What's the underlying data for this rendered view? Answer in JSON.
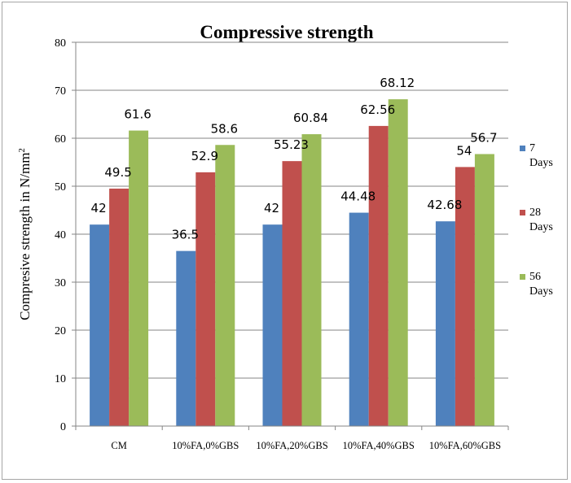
{
  "chart_data": {
    "type": "bar",
    "title": "Compressive strength",
    "ylabel": "Compresive strength in N/mm",
    "ylabel_superscript": "2",
    "xlabel": "",
    "ylim": [
      0,
      80
    ],
    "ytick_step": 10,
    "yticks": [
      "0",
      "10",
      "20",
      "30",
      "40",
      "50",
      "60",
      "70",
      "80"
    ],
    "grid": true,
    "legend_position": "right",
    "categories": [
      "CM",
      "10%FA,0%GBS",
      "10%FA,20%GBS",
      "10%FA,40%GBS",
      "10%FA,60%GBS"
    ],
    "series": [
      {
        "name": "7 Days",
        "name_lines": [
          "7",
          "Days"
        ],
        "color": "#4f81bd",
        "values": [
          42,
          36.5,
          42,
          44.48,
          42.68
        ],
        "labels": [
          "42",
          "36.5",
          "42",
          "44.48",
          "42.68"
        ]
      },
      {
        "name": "28 Days",
        "name_lines": [
          "28",
          "Days"
        ],
        "color": "#c0504d",
        "values": [
          49.5,
          52.9,
          55.23,
          62.56,
          54
        ],
        "labels": [
          "49.5",
          "52.9",
          "55.23",
          "62.56",
          "54"
        ]
      },
      {
        "name": "56 Days",
        "name_lines": [
          "56",
          "Days"
        ],
        "color": "#9bbb59",
        "values": [
          61.6,
          58.6,
          60.84,
          68.12,
          56.7
        ],
        "labels": [
          "61.6",
          "58.6",
          "60.84",
          "68.12",
          "56.7"
        ]
      }
    ]
  }
}
